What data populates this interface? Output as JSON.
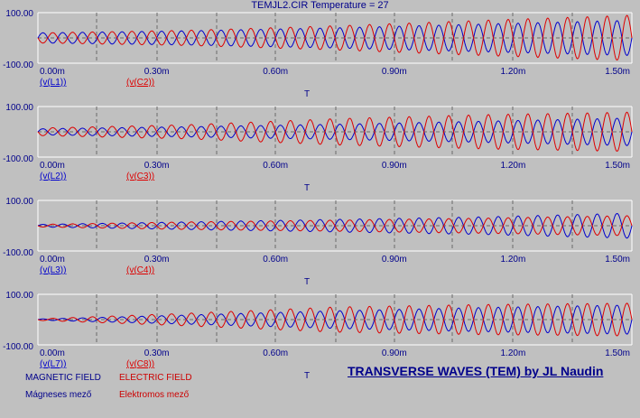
{
  "title": "TEMJL2.CIR Temperature = 27",
  "x_axis_label": "T",
  "footer": {
    "magnetic_label": "MAGNETIC FIELD",
    "electric_label": "ELECTRIC FIELD",
    "magnetic_label_hu": "Mágneses mező",
    "electric_label_hu": "Elektromos mező",
    "banner": "TRANSVERSE WAVES (TEM) by JL Naudin"
  },
  "colors": {
    "blue": "#0000cc",
    "red": "#dd0000",
    "text": "#00008b",
    "plot_bg": "#c0c0c0"
  },
  "chart_data": [
    {
      "type": "line",
      "x_ticks": [
        "0.00m",
        "0.30m",
        "0.60m",
        "0.90m",
        "1.20m",
        "1.50m"
      ],
      "xlim": [
        0,
        1.5
      ],
      "y_ticks": [
        "100.00",
        "-100.00"
      ],
      "ylim": [
        -100,
        100
      ],
      "legend": [
        "v(L1)",
        "v(C2)"
      ],
      "series": [
        {
          "name": "v(L1)",
          "color": "#0000cc",
          "frequency": 20,
          "amplitude": [
            20,
            28,
            40,
            55,
            70
          ],
          "phase": 0
        },
        {
          "name": "v(C2)",
          "color": "#dd0000",
          "frequency": 20,
          "amplitude": [
            20,
            30,
            48,
            70,
            90
          ],
          "phase": 3.14
        }
      ]
    },
    {
      "type": "line",
      "x_ticks": [
        "0.00m",
        "0.30m",
        "0.60m",
        "0.90m",
        "1.20m",
        "1.50m"
      ],
      "xlim": [
        0,
        1.5
      ],
      "y_ticks": [
        "100.00",
        "-100.00"
      ],
      "ylim": [
        -100,
        100
      ],
      "legend": [
        "v(L2)",
        "v(C3)"
      ],
      "series": [
        {
          "name": "v(L2)",
          "color": "#0000cc",
          "frequency": 20,
          "amplitude": [
            12,
            20,
            30,
            42,
            55
          ],
          "phase": 0
        },
        {
          "name": "v(C3)",
          "color": "#dd0000",
          "frequency": 20,
          "amplitude": [
            15,
            28,
            52,
            68,
            78
          ],
          "phase": 3.14
        }
      ]
    },
    {
      "type": "line",
      "x_ticks": [
        "0.00m",
        "0.30m",
        "0.60m",
        "0.90m",
        "1.20m",
        "1.50m"
      ],
      "xlim": [
        0,
        1.5
      ],
      "y_ticks": [
        "100.00",
        "-100.00"
      ],
      "ylim": [
        -100,
        100
      ],
      "legend": [
        "v(L3)",
        "v(C4)"
      ],
      "series": [
        {
          "name": "v(L3)",
          "color": "#0000cc",
          "frequency": 20,
          "amplitude": [
            5,
            15,
            25,
            35,
            50
          ],
          "phase": 0
        },
        {
          "name": "v(C4)",
          "color": "#dd0000",
          "frequency": 20,
          "amplitude": [
            5,
            15,
            22,
            30,
            40
          ],
          "phase": 3.14
        }
      ]
    },
    {
      "type": "line",
      "x_ticks": [
        "0.00m",
        "0.30m",
        "0.60m",
        "0.90m",
        "1.20m",
        "1.50m"
      ],
      "xlim": [
        0,
        1.5
      ],
      "y_ticks": [
        "100.00",
        "-100.00"
      ],
      "ylim": [
        -100,
        100
      ],
      "legend": [
        "v(L7)",
        "v(C8)"
      ],
      "series": [
        {
          "name": "v(L7)",
          "color": "#0000cc",
          "frequency": 20,
          "amplitude": [
            2,
            18,
            35,
            48,
            58
          ],
          "phase": 0
        },
        {
          "name": "v(C8)",
          "color": "#dd0000",
          "frequency": 20,
          "amplitude": [
            3,
            25,
            50,
            60,
            65
          ],
          "phase": 3.14
        }
      ]
    }
  ]
}
